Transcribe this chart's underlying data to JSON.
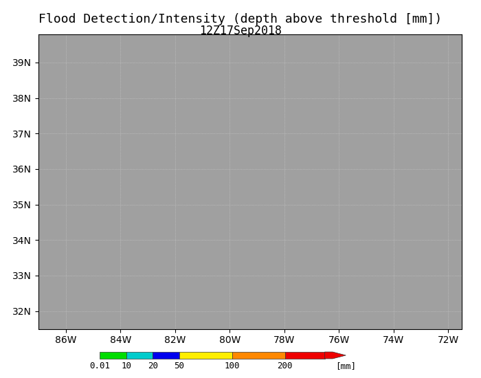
{
  "title_line1": "Flood Detection/Intensity (depth above threshold [mm])",
  "title_line2": "12Z17Sep2018",
  "xlim": [
    -87,
    -71.5
  ],
  "ylim": [
    31.5,
    39.8
  ],
  "xticks": [
    -86,
    -84,
    -82,
    -80,
    -78,
    -76,
    -74,
    -72
  ],
  "xtick_labels": [
    "86W",
    "84W",
    "82W",
    "80W",
    "78W",
    "76W",
    "74W",
    "72W"
  ],
  "yticks": [
    32,
    33,
    34,
    35,
    36,
    37,
    38,
    39
  ],
  "ytick_labels": [
    "32N",
    "33N",
    "34N",
    "35N",
    "36N",
    "37N",
    "38N",
    "39N"
  ],
  "background_color": "#ffffff",
  "land_color": "#a0a0a0",
  "water_color": "#ffffff",
  "colorbar_colors": [
    "#a0a0a0",
    "#00cc00",
    "#00cccc",
    "#0000ff",
    "#ffff00",
    "#ff8800",
    "#ff0000"
  ],
  "colorbar_labels": [
    "0.01",
    "10",
    "20",
    "50",
    "100",
    "200",
    "[mm]"
  ],
  "flood_color_thresholds": [
    0.01,
    10,
    20,
    50,
    100,
    200
  ],
  "flood_colors": [
    "#00dd00",
    "#00cccc",
    "#0000ee",
    "#ffee00",
    "#ff8800",
    "#ee0000"
  ],
  "grid_color": "#cccccc",
  "border_color": "#000000",
  "title_fontsize": 13,
  "subtitle_fontsize": 12,
  "tick_fontsize": 10
}
